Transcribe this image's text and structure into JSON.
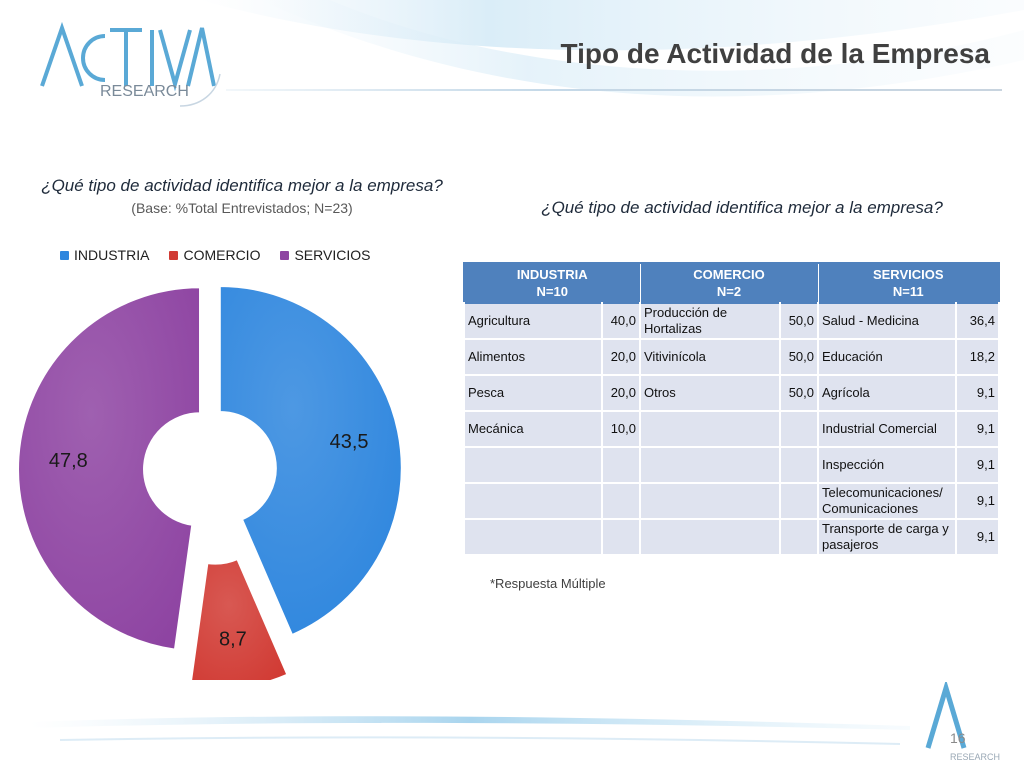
{
  "header": {
    "title": "Tipo de Actividad de la Empresa",
    "logo_text_top": "ACTIVA",
    "logo_text_bottom": "RESEARCH"
  },
  "chart_data": {
    "type": "pie",
    "title": "¿Qué tipo de actividad identifica mejor a la empresa?",
    "subtitle": "(Base: %Total Entrevistados; N=23)",
    "categories": [
      "INDUSTRIA",
      "COMERCIO",
      "SERVICIOS"
    ],
    "series": [
      {
        "values": [
          43.5,
          8.7,
          47.8
        ]
      }
    ],
    "labels": [
      "43,5",
      "8,7",
      "47,8"
    ],
    "colors": [
      "#2e86de",
      "#d13b34",
      "#8e44a2"
    ],
    "donut": true,
    "legend_position": "top-left"
  },
  "table": {
    "question": "¿Qué tipo de actividad identifica mejor a la empresa?",
    "headers": {
      "industria": "INDUSTRIA",
      "industria_n": "N=10",
      "comercio": "COMERCIO",
      "comercio_n": "N=2",
      "servicios": "SERVICIOS",
      "servicios_n": "N=11"
    },
    "rows": [
      {
        "industria_cat": "Agricultura",
        "industria_val": "40,0",
        "comercio_cat": "Producción de Hortalizas",
        "comercio_val": "50,0",
        "servicios_cat": "Salud - Medicina",
        "servicios_val": "36,4"
      },
      {
        "industria_cat": "Alimentos",
        "industria_val": "20,0",
        "comercio_cat": "Vitivinícola",
        "comercio_val": "50,0",
        "servicios_cat": "Educación",
        "servicios_val": "18,2"
      },
      {
        "industria_cat": "Pesca",
        "industria_val": "20,0",
        "comercio_cat": "Otros",
        "comercio_val": "50,0",
        "servicios_cat": "Agrícola",
        "servicios_val": "9,1"
      },
      {
        "industria_cat": "Mecánica",
        "industria_val": "10,0",
        "comercio_cat": "",
        "comercio_val": "",
        "servicios_cat": "Industrial Comercial",
        "servicios_val": "9,1"
      },
      {
        "industria_cat": "",
        "industria_val": "",
        "comercio_cat": "",
        "comercio_val": "",
        "servicios_cat": "Inspección",
        "servicios_val": "9,1"
      },
      {
        "industria_cat": "",
        "industria_val": "",
        "comercio_cat": "",
        "comercio_val": "",
        "servicios_cat": "Telecomunicaciones/ Comunicaciones",
        "servicios_val": "9,1"
      },
      {
        "industria_cat": "",
        "industria_val": "",
        "comercio_cat": "",
        "comercio_val": "",
        "servicios_cat": "Transporte de carga y pasajeros",
        "servicios_val": "9,1"
      }
    ],
    "footnote": "*Respuesta Múltiple"
  },
  "footer": {
    "page_number": "16",
    "mark_text": "RESEARCH"
  }
}
